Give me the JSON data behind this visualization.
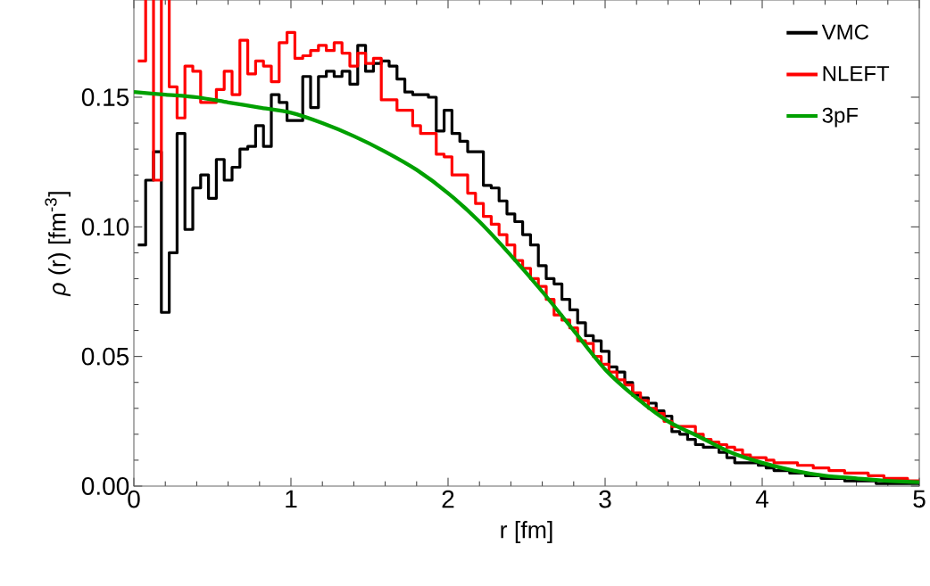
{
  "chart_data": {
    "type": "step",
    "xlabel": "r [fm]",
    "ylabel": "*ρ* (r) [fm$^{-3}$]",
    "x": [
      0.05,
      0.1,
      0.15,
      0.2,
      0.25,
      0.3,
      0.35,
      0.4,
      0.45,
      0.5,
      0.55,
      0.6,
      0.65,
      0.7,
      0.75,
      0.8,
      0.85,
      0.9,
      0.95,
      1.0,
      1.05,
      1.1,
      1.15,
      1.2,
      1.25,
      1.3,
      1.35,
      1.4,
      1.45,
      1.5,
      1.55,
      1.6,
      1.65,
      1.7,
      1.75,
      1.8,
      1.85,
      1.9,
      1.95,
      2.0,
      2.05,
      2.1,
      2.15,
      2.2,
      2.25,
      2.3,
      2.35,
      2.4,
      2.45,
      2.5,
      2.55,
      2.6,
      2.65,
      2.7,
      2.75,
      2.8,
      2.85,
      2.9,
      2.95,
      3.0,
      3.05,
      3.1,
      3.15,
      3.2,
      3.25,
      3.3,
      3.35,
      3.4,
      3.45,
      3.5,
      3.55,
      3.6,
      3.65,
      3.7,
      3.75,
      3.8,
      3.85,
      3.9,
      3.95,
      4.0,
      4.05,
      4.1,
      4.15,
      4.2,
      4.25,
      4.3,
      4.35,
      4.4,
      4.45,
      4.5,
      4.55,
      4.6,
      4.65,
      4.7,
      4.75,
      4.8,
      4.85,
      4.9,
      4.95,
      5.0
    ],
    "series": [
      {
        "name": "VMC",
        "color": "#000000",
        "values": [
          0.093,
          0.118,
          0.129,
          0.067,
          0.09,
          0.136,
          0.099,
          0.115,
          0.12,
          0.111,
          0.126,
          0.118,
          0.123,
          0.13,
          0.131,
          0.139,
          0.131,
          0.151,
          0.148,
          0.141,
          0.141,
          0.158,
          0.146,
          0.158,
          0.16,
          0.158,
          0.16,
          0.155,
          0.17,
          0.16,
          0.163,
          0.164,
          0.162,
          0.157,
          0.152,
          0.151,
          0.151,
          0.15,
          0.137,
          0.145,
          0.136,
          0.133,
          0.129,
          0.129,
          0.116,
          0.115,
          0.11,
          0.105,
          0.102,
          0.097,
          0.093,
          0.085,
          0.08,
          0.078,
          0.072,
          0.068,
          0.063,
          0.058,
          0.056,
          0.052,
          0.046,
          0.044,
          0.04,
          0.035,
          0.034,
          0.032,
          0.029,
          0.027,
          0.021,
          0.02,
          0.018,
          0.016,
          0.015,
          0.015,
          0.013,
          0.011,
          0.009,
          0.009,
          0.009,
          0.008,
          0.007,
          0.006,
          0.006,
          0.005,
          0.005,
          0.004,
          0.004,
          0.003,
          0.003,
          0.003,
          0.002,
          0.002,
          0.002,
          0.002,
          0.001,
          0.001,
          0.001,
          0.001,
          0.001,
          0.001
        ]
      },
      {
        "name": "NLEFT",
        "color": "#ff0000",
        "values": [
          0.164,
          null,
          0.118,
          null,
          0.154,
          0.142,
          0.162,
          0.16,
          0.148,
          0.148,
          0.153,
          0.16,
          0.151,
          0.172,
          0.159,
          0.164,
          0.162,
          0.156,
          0.171,
          0.175,
          0.165,
          0.166,
          0.168,
          0.17,
          0.168,
          0.171,
          0.167,
          0.162,
          0.167,
          0.163,
          0.165,
          0.149,
          0.149,
          0.145,
          0.145,
          0.139,
          0.136,
          0.136,
          0.128,
          0.127,
          0.12,
          0.12,
          0.113,
          0.109,
          0.104,
          0.101,
          0.097,
          0.093,
          0.087,
          0.084,
          0.08,
          0.077,
          0.072,
          0.066,
          0.064,
          0.061,
          0.056,
          0.055,
          0.05,
          0.047,
          0.044,
          0.041,
          0.039,
          0.036,
          0.033,
          0.03,
          0.028,
          0.025,
          0.023,
          0.023,
          0.023,
          0.02,
          0.018,
          0.017,
          0.016,
          0.015,
          0.014,
          0.012,
          0.011,
          0.011,
          0.01,
          0.009,
          0.009,
          0.009,
          0.008,
          0.008,
          0.007,
          0.007,
          0.006,
          0.006,
          0.005,
          0.005,
          0.005,
          0.004,
          0.004,
          0.003,
          0.003,
          0.003,
          0.002,
          0.002
        ]
      },
      {
        "name": "3pF",
        "type": "line",
        "color": "#00a000",
        "x": [
          0,
          0.2,
          0.4,
          0.6,
          0.8,
          1.0,
          1.2,
          1.4,
          1.6,
          1.8,
          2.0,
          2.2,
          2.4,
          2.6,
          2.8,
          3.0,
          3.2,
          3.4,
          3.6,
          3.8,
          4.0,
          4.2,
          4.4,
          4.6,
          4.8,
          5.0
        ],
        "values": [
          0.152,
          0.151,
          0.15,
          0.148,
          0.146,
          0.144,
          0.14,
          0.135,
          0.129,
          0.122,
          0.113,
          0.102,
          0.089,
          0.075,
          0.06,
          0.045,
          0.034,
          0.025,
          0.019,
          0.013,
          0.009,
          0.006,
          0.004,
          0.003,
          0.002,
          0.0015
        ]
      }
    ],
    "xlim": [
      0,
      5
    ],
    "ylim": [
      0,
      0.1875
    ],
    "xticks": [
      0,
      1,
      2,
      3,
      4,
      5
    ],
    "yticks": [
      {
        "value": 0,
        "label": "0.00"
      },
      {
        "value": 0.05,
        "label": "0.05"
      },
      {
        "value": 0.1,
        "label": "0.10"
      },
      {
        "value": 0.15,
        "label": "0.15"
      }
    ],
    "legend": "top right",
    "marker": "none",
    "line_style": "solid"
  }
}
